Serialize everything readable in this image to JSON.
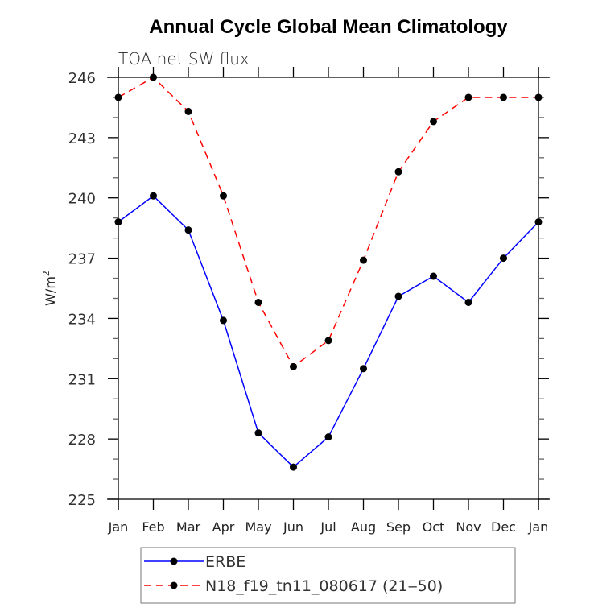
{
  "chart_data": {
    "type": "line",
    "title": "Annual Cycle Global Mean Climatology",
    "subtitle": "TOA net SW flux",
    "xlabel": "",
    "ylabel": "W/m",
    "ylabel_superscript": "2",
    "categories": [
      "Jan",
      "Feb",
      "Mar",
      "Apr",
      "May",
      "Jun",
      "Jul",
      "Aug",
      "Sep",
      "Oct",
      "Nov",
      "Dec",
      "Jan"
    ],
    "ylim": [
      225,
      246
    ],
    "yticks": [
      225,
      228,
      231,
      234,
      237,
      240,
      243,
      246
    ],
    "yminor_step": 1,
    "grid": false,
    "legend_position": "bottom",
    "series": [
      {
        "name": "ERBE",
        "color": "#0000ff",
        "style": "solid",
        "marker": "filled-circle",
        "values": [
          238.8,
          240.1,
          238.4,
          233.9,
          228.3,
          226.6,
          228.1,
          231.5,
          235.1,
          236.1,
          234.8,
          237.0,
          238.8
        ]
      },
      {
        "name": "N18_f19_tn11_080617 (21‒50)",
        "color": "#ff0000",
        "style": "dashed",
        "marker": "filled-circle",
        "values": [
          245.0,
          246.0,
          244.3,
          240.1,
          234.8,
          231.6,
          232.9,
          236.9,
          241.3,
          243.8,
          245.0,
          245.0,
          245.0
        ]
      }
    ]
  }
}
